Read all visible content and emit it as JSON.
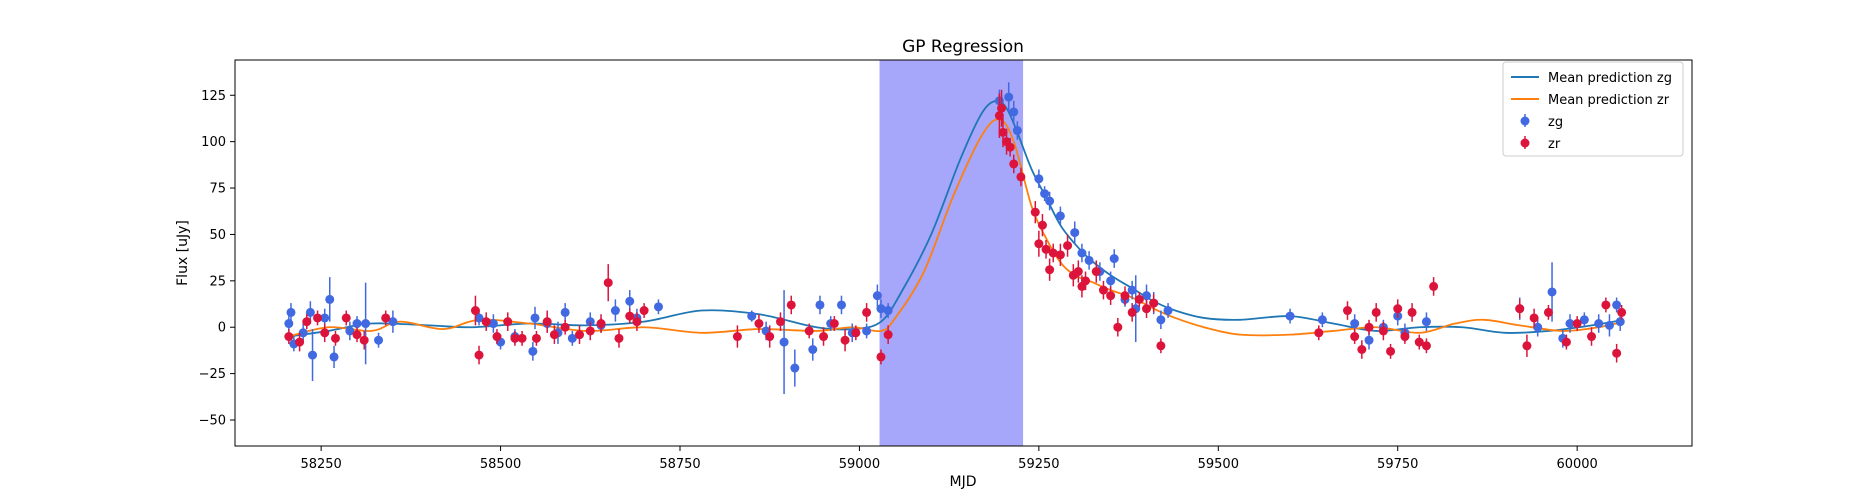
{
  "chart_data": {
    "type": "scatter",
    "title": "GP Regression",
    "xlabel": "MJD",
    "ylabel": "Flux [uJy]",
    "xlim": [
      58130,
      60160
    ],
    "ylim": [
      -64,
      144
    ],
    "xticks": [
      58250,
      58500,
      58750,
      59000,
      59250,
      59500,
      59750,
      60000
    ],
    "yticks": [
      -50,
      -25,
      0,
      25,
      50,
      75,
      100,
      125
    ],
    "grid": false,
    "legend_position": "top-right",
    "shaded_region": {
      "x_start": 59028,
      "x_end": 59228,
      "color": "#a6a6fa"
    },
    "lines": [
      {
        "name": "Mean prediction zg",
        "color": "#1f77b4",
        "x": [
          58205,
          58260,
          58320,
          58400,
          58460,
          58540,
          58620,
          58700,
          58780,
          58860,
          58940,
          58990,
          59030,
          59060,
          59100,
          59140,
          59170,
          59190,
          59205,
          59220,
          59240,
          59260,
          59280,
          59300,
          59320,
          59350,
          59380,
          59410,
          59440,
          59480,
          59530,
          59600,
          59660,
          59720,
          59780,
          59840,
          59900,
          59960,
          60020,
          60065
        ],
        "y": [
          -5,
          -2,
          2,
          1,
          0,
          2,
          1,
          3,
          9,
          7,
          0,
          -1,
          3,
          20,
          50,
          90,
          115,
          122,
          118,
          105,
          85,
          70,
          55,
          45,
          37,
          28,
          21,
          14,
          9,
          5,
          4,
          6,
          2,
          -2,
          0,
          0,
          -3,
          -2,
          1,
          4
        ]
      },
      {
        "name": "Mean prediction zr",
        "color": "#ff7f0e",
        "x": [
          58205,
          58260,
          58320,
          58360,
          58420,
          58470,
          58540,
          58620,
          58700,
          58780,
          58860,
          58940,
          58990,
          59030,
          59050,
          59090,
          59130,
          59170,
          59195,
          59215,
          59240,
          59260,
          59280,
          59300,
          59320,
          59350,
          59380,
          59410,
          59440,
          59480,
          59530,
          59600,
          59660,
          59720,
          59780,
          59830,
          59870,
          59920,
          59980,
          60030,
          60065
        ],
        "y": [
          -5,
          0,
          -2,
          3,
          -1,
          4,
          2,
          -2,
          0,
          -3,
          -1,
          -2,
          0,
          -2,
          5,
          30,
          70,
          103,
          112,
          100,
          65,
          48,
          35,
          28,
          25,
          20,
          16,
          10,
          5,
          0,
          -4,
          -4,
          -2,
          0,
          -3,
          2,
          4,
          1,
          -2,
          0,
          3
        ]
      }
    ],
    "series": [
      {
        "name": "zg",
        "color": "#4169e1",
        "points": [
          [
            58205,
            2,
            4
          ],
          [
            58208,
            8,
            5
          ],
          [
            58212,
            -9,
            4
          ],
          [
            58225,
            -3,
            5
          ],
          [
            58235,
            8,
            6
          ],
          [
            58238,
            -15,
            14
          ],
          [
            58255,
            5,
            5
          ],
          [
            58262,
            15,
            12
          ],
          [
            58268,
            -16,
            6
          ],
          [
            58290,
            -2,
            5
          ],
          [
            58300,
            2,
            4
          ],
          [
            58312,
            2,
            22
          ],
          [
            58330,
            -7,
            4
          ],
          [
            58350,
            3,
            6
          ],
          [
            58470,
            5,
            4
          ],
          [
            58490,
            2,
            5
          ],
          [
            58500,
            -8,
            4
          ],
          [
            58520,
            -5,
            4
          ],
          [
            58545,
            -13,
            5
          ],
          [
            58548,
            5,
            6
          ],
          [
            58565,
            2,
            5
          ],
          [
            58580,
            -3,
            6
          ],
          [
            58590,
            8,
            5
          ],
          [
            58600,
            -6,
            4
          ],
          [
            58625,
            3,
            5
          ],
          [
            58640,
            1,
            4
          ],
          [
            58660,
            9,
            6
          ],
          [
            58680,
            14,
            6
          ],
          [
            58690,
            5,
            5
          ],
          [
            58720,
            11,
            4
          ],
          [
            58850,
            6,
            3
          ],
          [
            58870,
            -2,
            5
          ],
          [
            58895,
            -8,
            28
          ],
          [
            58910,
            -22,
            10
          ],
          [
            58935,
            -12,
            6
          ],
          [
            58945,
            12,
            5
          ],
          [
            58960,
            2,
            4
          ],
          [
            58975,
            12,
            5
          ],
          [
            58990,
            -3,
            5
          ],
          [
            59010,
            -2,
            4
          ],
          [
            59025,
            17,
            6
          ],
          [
            59030,
            10,
            5
          ],
          [
            59040,
            9,
            4
          ],
          [
            59195,
            122,
            6
          ],
          [
            59208,
            124,
            8
          ],
          [
            59215,
            116,
            6
          ],
          [
            59220,
            106,
            5
          ],
          [
            59250,
            80,
            5
          ],
          [
            59258,
            72,
            4
          ],
          [
            59265,
            68,
            5
          ],
          [
            59280,
            60,
            5
          ],
          [
            59300,
            51,
            6
          ],
          [
            59310,
            40,
            5
          ],
          [
            59320,
            36,
            5
          ],
          [
            59335,
            30,
            5
          ],
          [
            59350,
            25,
            5
          ],
          [
            59355,
            37,
            5
          ],
          [
            59370,
            15,
            4
          ],
          [
            59380,
            20,
            5
          ],
          [
            59385,
            10,
            18
          ],
          [
            59400,
            17,
            6
          ],
          [
            59410,
            13,
            6
          ],
          [
            59420,
            4,
            5
          ],
          [
            59430,
            9,
            4
          ],
          [
            59600,
            6,
            4
          ],
          [
            59645,
            4,
            4
          ],
          [
            59690,
            2,
            5
          ],
          [
            59710,
            -7,
            5
          ],
          [
            59730,
            0,
            4
          ],
          [
            59750,
            6,
            5
          ],
          [
            59760,
            -3,
            5
          ],
          [
            59790,
            3,
            5
          ],
          [
            59920,
            10,
            6
          ],
          [
            59945,
            0,
            5
          ],
          [
            59965,
            19,
            16
          ],
          [
            59980,
            -6,
            5
          ],
          [
            59990,
            2,
            5
          ],
          [
            60010,
            4,
            4
          ],
          [
            60030,
            2,
            5
          ],
          [
            60045,
            1,
            6
          ],
          [
            60055,
            12,
            4
          ],
          [
            60060,
            3,
            5
          ]
        ]
      },
      {
        "name": "zr",
        "color": "#dc143c",
        "points": [
          [
            58205,
            -5,
            4
          ],
          [
            58220,
            -8,
            5
          ],
          [
            58230,
            3,
            4
          ],
          [
            58245,
            5,
            4
          ],
          [
            58255,
            -3,
            5
          ],
          [
            58270,
            -6,
            4
          ],
          [
            58285,
            5,
            4
          ],
          [
            58300,
            -4,
            4
          ],
          [
            58310,
            -7,
            5
          ],
          [
            58340,
            5,
            4
          ],
          [
            58465,
            9,
            8
          ],
          [
            58470,
            -15,
            5
          ],
          [
            58480,
            3,
            5
          ],
          [
            58495,
            -5,
            4
          ],
          [
            58510,
            3,
            5
          ],
          [
            58520,
            -6,
            4
          ],
          [
            58530,
            -6,
            4
          ],
          [
            58550,
            -6,
            4
          ],
          [
            58565,
            3,
            6
          ],
          [
            58575,
            -4,
            5
          ],
          [
            58590,
            0,
            4
          ],
          [
            58610,
            -4,
            5
          ],
          [
            58625,
            -2,
            5
          ],
          [
            58640,
            2,
            5
          ],
          [
            58650,
            24,
            10
          ],
          [
            58665,
            -6,
            5
          ],
          [
            58680,
            6,
            4
          ],
          [
            58690,
            3,
            5
          ],
          [
            58700,
            9,
            4
          ],
          [
            58830,
            -5,
            6
          ],
          [
            58860,
            2,
            5
          ],
          [
            58875,
            -5,
            6
          ],
          [
            58890,
            3,
            5
          ],
          [
            58905,
            12,
            5
          ],
          [
            58930,
            -2,
            4
          ],
          [
            58950,
            -5,
            5
          ],
          [
            58965,
            2,
            4
          ],
          [
            58980,
            -7,
            6
          ],
          [
            58995,
            -3,
            4
          ],
          [
            59010,
            8,
            5
          ],
          [
            59030,
            -16,
            4
          ],
          [
            59040,
            -4,
            5
          ],
          [
            59195,
            114,
            12
          ],
          [
            59198,
            118,
            10
          ],
          [
            59200,
            105,
            8
          ],
          [
            59205,
            100,
            7
          ],
          [
            59210,
            97,
            5
          ],
          [
            59215,
            88,
            5
          ],
          [
            59225,
            81,
            5
          ],
          [
            59245,
            62,
            6
          ],
          [
            59250,
            45,
            7
          ],
          [
            59255,
            55,
            6
          ],
          [
            59260,
            42,
            5
          ],
          [
            59265,
            31,
            6
          ],
          [
            59270,
            40,
            5
          ],
          [
            59280,
            39,
            6
          ],
          [
            59290,
            44,
            6
          ],
          [
            59298,
            28,
            6
          ],
          [
            59305,
            30,
            6
          ],
          [
            59310,
            22,
            6
          ],
          [
            59315,
            25,
            5
          ],
          [
            59330,
            30,
            6
          ],
          [
            59340,
            20,
            5
          ],
          [
            59350,
            17,
            5
          ],
          [
            59360,
            0,
            5
          ],
          [
            59370,
            17,
            5
          ],
          [
            59380,
            8,
            5
          ],
          [
            59390,
            15,
            4
          ],
          [
            59400,
            10,
            5
          ],
          [
            59410,
            13,
            5
          ],
          [
            59420,
            -10,
            4
          ],
          [
            59640,
            -3,
            4
          ],
          [
            59680,
            9,
            5
          ],
          [
            59690,
            -5,
            4
          ],
          [
            59700,
            -12,
            5
          ],
          [
            59710,
            0,
            4
          ],
          [
            59720,
            8,
            5
          ],
          [
            59730,
            -2,
            5
          ],
          [
            59740,
            -13,
            4
          ],
          [
            59750,
            10,
            5
          ],
          [
            59760,
            -5,
            4
          ],
          [
            59770,
            8,
            5
          ],
          [
            59780,
            -8,
            4
          ],
          [
            59790,
            -10,
            4
          ],
          [
            59800,
            22,
            5
          ],
          [
            59920,
            10,
            5
          ],
          [
            59930,
            -10,
            6
          ],
          [
            59940,
            5,
            5
          ],
          [
            59960,
            8,
            4
          ],
          [
            59985,
            -8,
            4
          ],
          [
            60000,
            2,
            4
          ],
          [
            60020,
            -5,
            5
          ],
          [
            60040,
            12,
            4
          ],
          [
            60055,
            -14,
            5
          ],
          [
            60062,
            8,
            4
          ]
        ]
      }
    ]
  }
}
